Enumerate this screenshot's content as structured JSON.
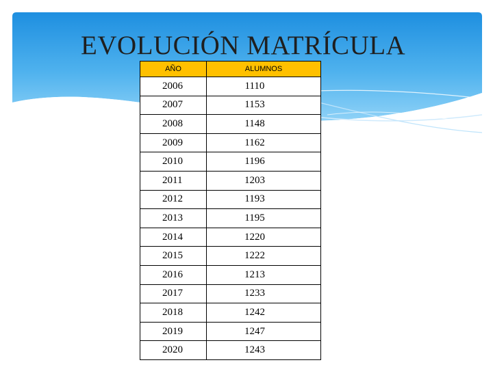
{
  "title": "EVOLUCIÓN MATRÍCULA",
  "colors": {
    "header_blue": "#2f9be3",
    "table_header": "#ffc000"
  },
  "table": {
    "headers": [
      "AÑO",
      "ALUMNOS"
    ],
    "rows": [
      [
        "2006",
        "1110"
      ],
      [
        "2007",
        "1153"
      ],
      [
        "2008",
        "1148"
      ],
      [
        "2009",
        "1162"
      ],
      [
        "2010",
        "1196"
      ],
      [
        "2011",
        "1203"
      ],
      [
        "2012",
        "1193"
      ],
      [
        "2013",
        "1195"
      ],
      [
        "2014",
        "1220"
      ],
      [
        "2015",
        "1222"
      ],
      [
        "2016",
        "1213"
      ],
      [
        "2017",
        "1233"
      ],
      [
        "2018",
        "1242"
      ],
      [
        "2019",
        "1247"
      ],
      [
        "2020",
        "1243"
      ]
    ]
  }
}
